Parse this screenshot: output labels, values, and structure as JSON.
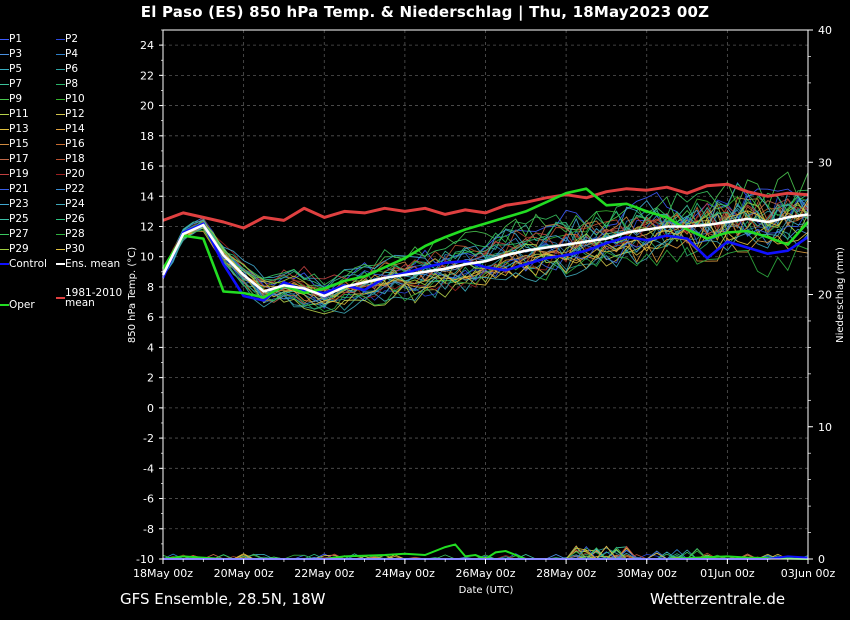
{
  "title": "El Paso  (ES)  850 hPa Temp. & Niederschlag | Thu, 18May2023 00Z",
  "footer": {
    "left": "GFS Ensemble, 28.5N, 18W",
    "right": "Wetterzentrale.de"
  },
  "legend": [
    {
      "label": "P1",
      "color": "#3d5cff"
    },
    {
      "label": "P2",
      "color": "#2a47d9"
    },
    {
      "label": "P3",
      "color": "#4a90e0"
    },
    {
      "label": "P4",
      "color": "#2f7fc7"
    },
    {
      "label": "P5",
      "color": "#3aaec0"
    },
    {
      "label": "P6",
      "color": "#2fa0a0"
    },
    {
      "label": "P7",
      "color": "#3cc29a"
    },
    {
      "label": "P8",
      "color": "#2bb36a"
    },
    {
      "label": "P9",
      "color": "#4ac850"
    },
    {
      "label": "P10",
      "color": "#35b02e"
    },
    {
      "label": "P11",
      "color": "#b6d24a"
    },
    {
      "label": "P12",
      "color": "#d2c34a"
    },
    {
      "label": "P13",
      "color": "#e0c040"
    },
    {
      "label": "P14",
      "color": "#e0a040"
    },
    {
      "label": "P15",
      "color": "#d08a40"
    },
    {
      "label": "P16",
      "color": "#c86b30"
    },
    {
      "label": "P17",
      "color": "#c06a4a"
    },
    {
      "label": "P18",
      "color": "#b85030"
    },
    {
      "label": "P19",
      "color": "#c04040"
    },
    {
      "label": "P20",
      "color": "#9a2020"
    },
    {
      "label": "P21",
      "color": "#3a60e8"
    },
    {
      "label": "P22",
      "color": "#3a8ad0"
    },
    {
      "label": "P23",
      "color": "#40a8d0"
    },
    {
      "label": "P24",
      "color": "#3fa8b8"
    },
    {
      "label": "P25",
      "color": "#3dc0a8"
    },
    {
      "label": "P26",
      "color": "#2ec080"
    },
    {
      "label": "P27",
      "color": "#3ac860"
    },
    {
      "label": "P28",
      "color": "#30b040"
    },
    {
      "label": "P29",
      "color": "#a0d040"
    },
    {
      "label": "P30",
      "color": "#e0c040"
    },
    {
      "label": "Control",
      "color": "#1010ff",
      "thick": true
    },
    {
      "label": "Ens. mean",
      "color": "#ffffff",
      "thick": true
    },
    {
      "label": "Oper",
      "color": "#22dd22",
      "thick": true
    },
    {
      "label": "1981-2010 mean",
      "color": "#e04040",
      "thick": true
    }
  ],
  "chart_data": {
    "type": "line",
    "title": "El Paso  (ES)  850 hPa Temp. & Niederschlag | Thu, 18May2023 00Z",
    "xlabel": "Date (UTC)",
    "ylabel": "850 hPa Temp. (°C)",
    "y2label": "Niederschlag (mm)",
    "ylim": [
      -10,
      25
    ],
    "y2lim": [
      0,
      40
    ],
    "yticks": [
      "24",
      "22",
      "20",
      "18",
      "16",
      "14",
      "12",
      "10",
      "8",
      "6",
      "4",
      "2",
      "0",
      "-2",
      "-4",
      "-6",
      "-8",
      "-10"
    ],
    "y2ticks": [
      "40",
      "30",
      "20",
      "10",
      "0"
    ],
    "xticks": [
      "18May 00z",
      "20May 00z",
      "22May 00z",
      "24May 00z",
      "26May 00z",
      "28May 00z",
      "30May 00z",
      "01Jun 00z",
      "03Jun 00z"
    ],
    "x_hours_range": [
      0,
      384
    ],
    "grid": true,
    "series": [
      {
        "name": "1981-2010 mean",
        "color": "#e04040",
        "x": [
          0,
          12,
          24,
          36,
          48,
          60,
          72,
          84,
          96,
          108,
          120,
          132,
          144,
          156,
          168,
          180,
          192,
          204,
          216,
          228,
          240,
          252,
          264,
          276,
          288,
          300,
          312,
          324,
          336,
          348,
          360,
          372,
          384
        ],
        "values": [
          12.4,
          12.9,
          12.6,
          12.3,
          11.9,
          12.6,
          12.4,
          13.2,
          12.6,
          13.0,
          12.9,
          13.2,
          13.0,
          13.2,
          12.8,
          13.1,
          12.9,
          13.4,
          13.6,
          13.9,
          14.1,
          13.9,
          14.3,
          14.5,
          14.4,
          14.6,
          14.2,
          14.7,
          14.8,
          14.3,
          14.0,
          14.2,
          14.1
        ]
      },
      {
        "name": "Ens. mean",
        "color": "#ffffff",
        "x": [
          0,
          12,
          24,
          36,
          48,
          60,
          72,
          84,
          96,
          108,
          120,
          132,
          144,
          156,
          168,
          180,
          192,
          204,
          216,
          228,
          240,
          252,
          264,
          276,
          288,
          300,
          312,
          324,
          336,
          348,
          360,
          372,
          384
        ],
        "values": [
          8.8,
          11.5,
          12.1,
          10.1,
          8.8,
          7.7,
          8.1,
          7.9,
          7.4,
          8.0,
          8.3,
          8.6,
          8.8,
          9.0,
          9.2,
          9.5,
          9.7,
          10.1,
          10.4,
          10.6,
          10.8,
          11.0,
          11.2,
          11.6,
          11.8,
          12.0,
          12.0,
          12.1,
          12.3,
          12.5,
          12.3,
          12.6,
          12.8
        ]
      },
      {
        "name": "Control",
        "color": "#1010ff",
        "x": [
          0,
          12,
          24,
          36,
          48,
          60,
          72,
          84,
          96,
          108,
          120,
          132,
          144,
          156,
          168,
          180,
          192,
          204,
          216,
          228,
          240,
          252,
          264,
          276,
          288,
          300,
          312,
          324,
          336,
          348,
          360,
          372,
          384
        ],
        "values": [
          8.6,
          11.6,
          12.2,
          9.5,
          7.4,
          7.1,
          8.3,
          7.8,
          7.6,
          8.1,
          7.8,
          8.6,
          8.9,
          9.3,
          9.6,
          9.7,
          9.3,
          9.1,
          9.5,
          9.9,
          10.1,
          10.4,
          10.9,
          11.3,
          11.1,
          11.4,
          11.2,
          9.9,
          11.0,
          10.6,
          10.2,
          10.4,
          11.3
        ]
      },
      {
        "name": "Oper",
        "color": "#22dd22",
        "x": [
          0,
          12,
          24,
          36,
          48,
          60,
          72,
          84,
          96,
          108,
          120,
          132,
          144,
          156,
          168,
          180,
          192,
          204,
          216,
          228,
          240,
          252,
          264,
          276,
          288,
          300,
          312,
          324,
          336,
          348,
          360,
          372,
          384
        ],
        "values": [
          9.2,
          11.4,
          11.2,
          7.7,
          7.6,
          7.3,
          8.1,
          7.6,
          7.9,
          8.4,
          8.7,
          9.3,
          9.9,
          10.7,
          11.3,
          11.8,
          12.2,
          12.6,
          13.0,
          13.6,
          14.2,
          14.5,
          13.4,
          13.5,
          13.0,
          12.6,
          11.8,
          11.2,
          11.6,
          11.7,
          11.3,
          10.8,
          12.3
        ]
      }
    ]
  }
}
